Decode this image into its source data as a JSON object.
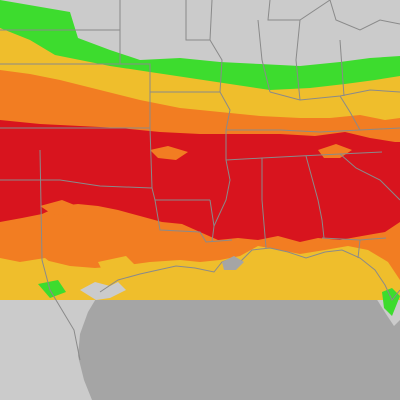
{
  "map": {
    "colors": {
      "ocean": "#a5a5a5",
      "land": "#cbcbcb",
      "borders": "#8a8a8a",
      "band_green": "#3ddc2e",
      "band_yellow": "#efbe2c",
      "band_orange": "#f27d22",
      "band_red": "#d8141e"
    }
  }
}
